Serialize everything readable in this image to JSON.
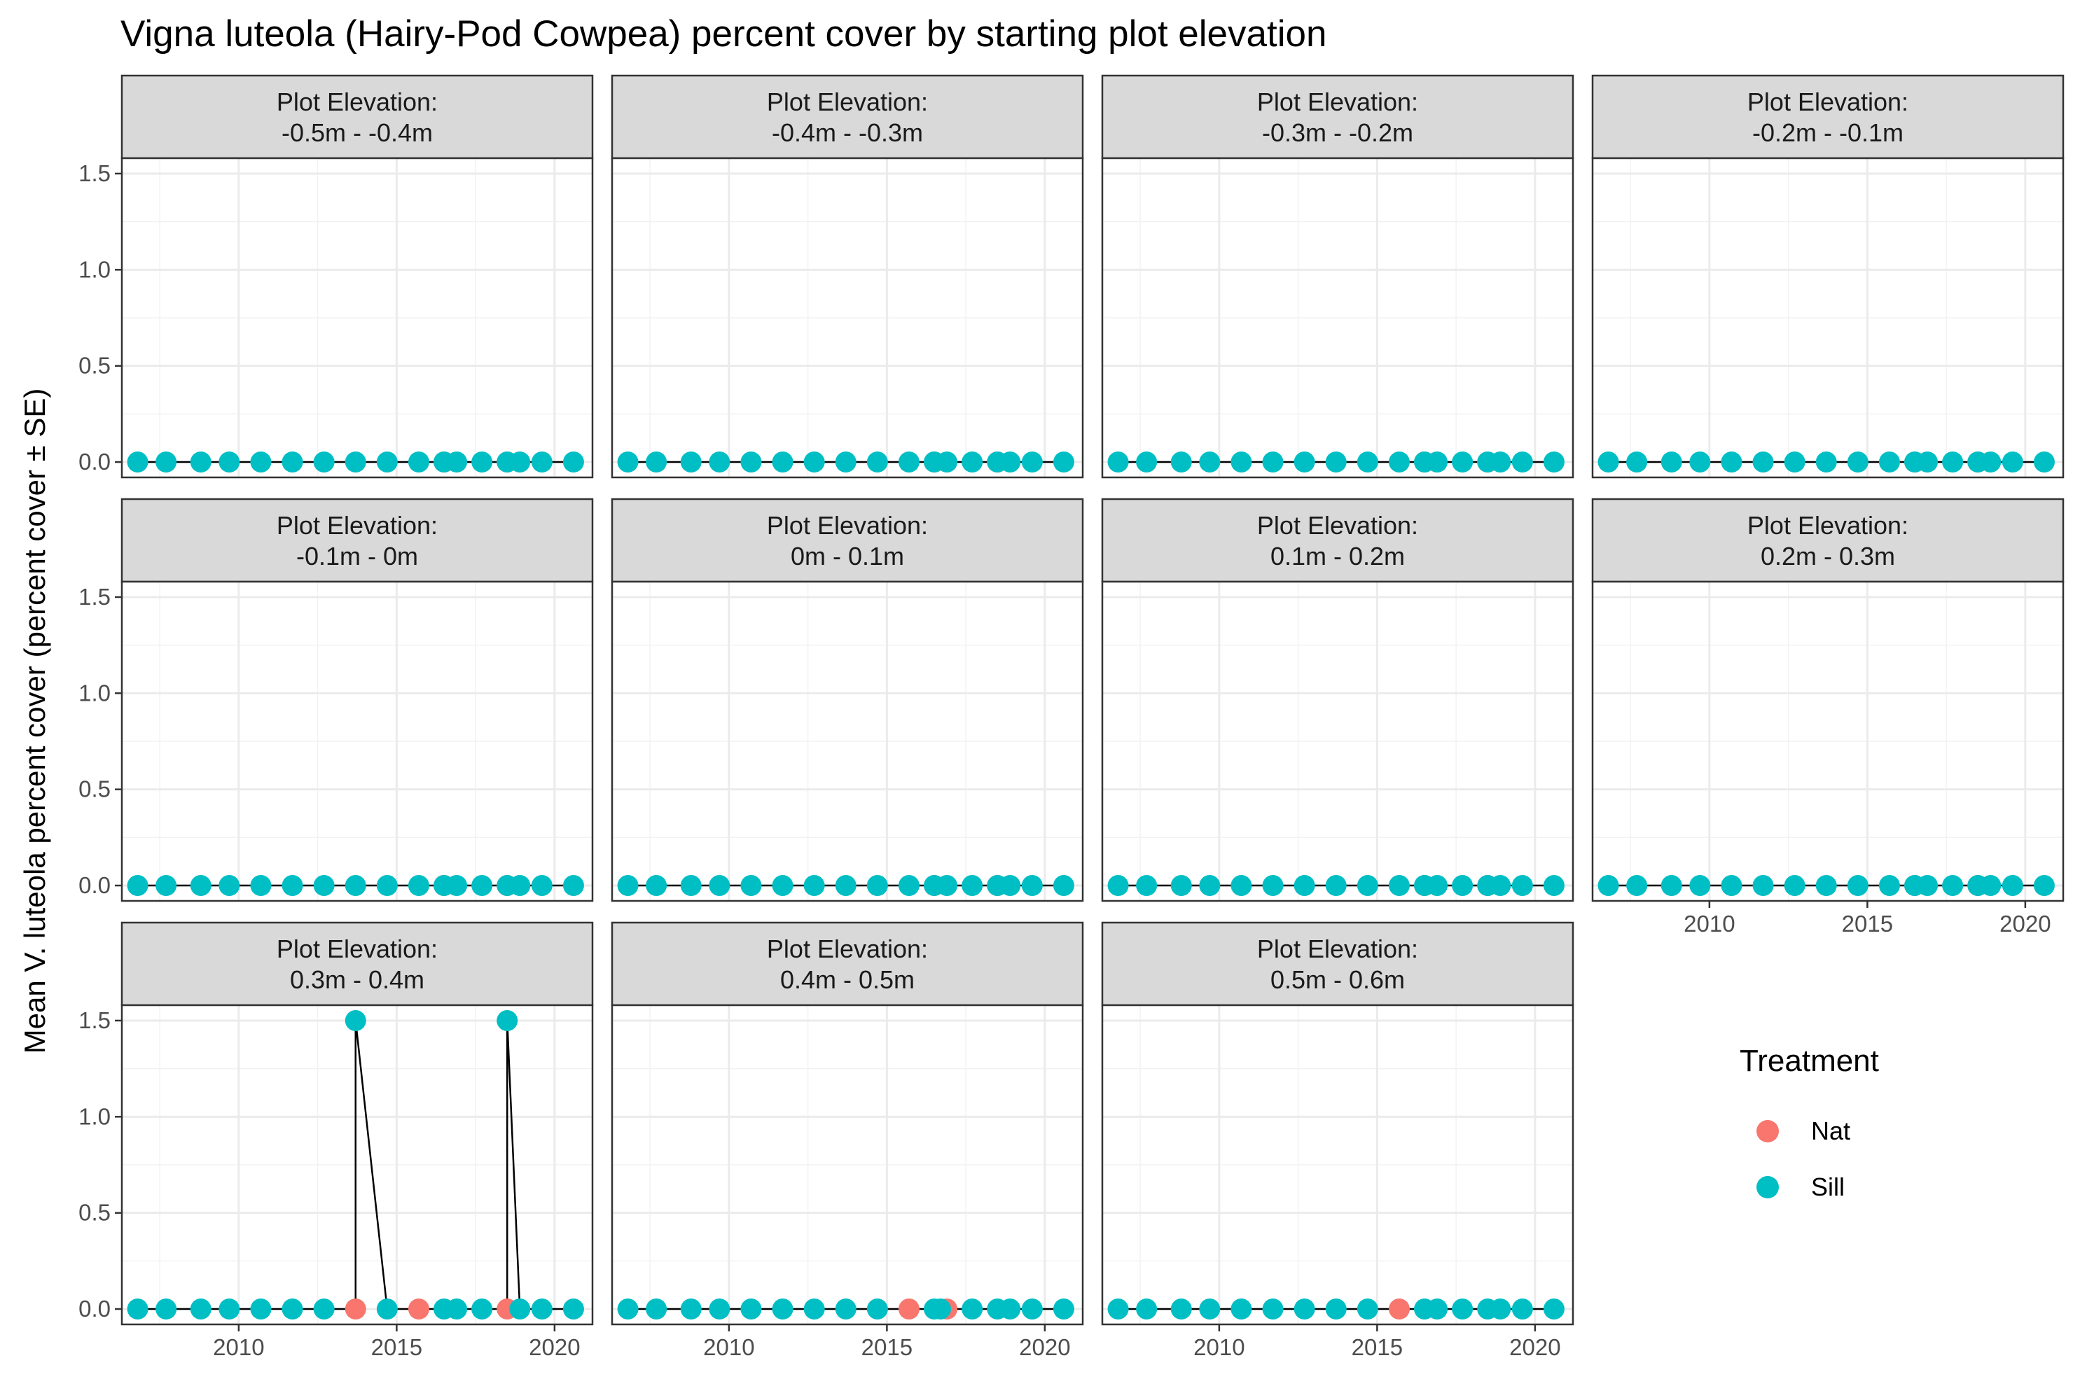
{
  "chart_data": {
    "type": "line",
    "title": "Vigna luteola (Hairy-Pod Cowpea) percent cover by starting plot elevation",
    "xlabel": "",
    "ylabel": "Mean V. luteola percent cover (percent cover ± SE)",
    "strip_prefix": "Plot Elevation:",
    "xlim": [
      2006.3,
      2021.2
    ],
    "ylim": [
      -0.08,
      1.58
    ],
    "x_ticks": [
      2010,
      2015,
      2020
    ],
    "y_ticks": [
      0.0,
      0.5,
      1.0,
      1.5
    ],
    "y_tick_labels": [
      "0.0",
      "0.5",
      "1.0",
      "1.5"
    ],
    "grid": true,
    "legend": {
      "title": "Treatment",
      "placement": "right-bottom",
      "items": [
        {
          "label": "Nat",
          "color": "#F8766D"
        },
        {
          "label": "Sill",
          "color": "#00BFC4"
        }
      ]
    },
    "colors": {
      "Nat": "#F8766D",
      "Sill": "#00BFC4",
      "line": "#000000"
    },
    "panels": [
      {
        "label": "-0.5m - -0.4m",
        "series": [
          {
            "name": "Nat",
            "x": [
              2016.5,
              2018.5
            ],
            "y": [
              0,
              0
            ]
          },
          {
            "name": "Sill",
            "x": [
              2006.8,
              2007.7,
              2008.8,
              2009.7,
              2010.7,
              2011.7,
              2012.7,
              2013.7,
              2014.7,
              2015.7,
              2016.5,
              2016.9,
              2017.7,
              2018.5,
              2018.9,
              2019.6,
              2020.6
            ],
            "y": [
              0,
              0,
              0,
              0,
              0,
              0,
              0,
              0,
              0,
              0,
              0,
              0,
              0,
              0,
              0,
              0,
              0
            ]
          }
        ]
      },
      {
        "label": "-0.4m - -0.3m",
        "series": [
          {
            "name": "Nat",
            "x": [
              2016.5,
              2018.5
            ],
            "y": [
              0,
              0
            ]
          },
          {
            "name": "Sill",
            "x": [
              2006.8,
              2007.7,
              2008.8,
              2009.7,
              2010.7,
              2011.7,
              2012.7,
              2013.7,
              2014.7,
              2015.7,
              2016.5,
              2016.9,
              2017.7,
              2018.5,
              2018.9,
              2019.6,
              2020.6
            ],
            "y": [
              0,
              0,
              0,
              0,
              0,
              0,
              0,
              0,
              0,
              0,
              0,
              0,
              0,
              0,
              0,
              0,
              0
            ]
          }
        ]
      },
      {
        "label": "-0.3m - -0.2m",
        "series": [
          {
            "name": "Nat",
            "x": [
              2016.5,
              2018.5
            ],
            "y": [
              0,
              0
            ]
          },
          {
            "name": "Sill",
            "x": [
              2006.8,
              2007.7,
              2008.8,
              2009.7,
              2010.7,
              2011.7,
              2012.7,
              2013.7,
              2014.7,
              2015.7,
              2016.5,
              2016.9,
              2017.7,
              2018.5,
              2018.9,
              2019.6,
              2020.6
            ],
            "y": [
              0,
              0,
              0,
              0,
              0,
              0,
              0,
              0,
              0,
              0,
              0,
              0,
              0,
              0,
              0,
              0,
              0
            ]
          }
        ]
      },
      {
        "label": "-0.2m - -0.1m",
        "series": [
          {
            "name": "Nat",
            "x": [
              2016.5,
              2018.5
            ],
            "y": [
              0,
              0
            ]
          },
          {
            "name": "Sill",
            "x": [
              2006.8,
              2007.7,
              2008.8,
              2009.7,
              2010.7,
              2011.7,
              2012.7,
              2013.7,
              2014.7,
              2015.7,
              2016.5,
              2016.9,
              2017.7,
              2018.5,
              2018.9,
              2019.6,
              2020.6
            ],
            "y": [
              0,
              0,
              0,
              0,
              0,
              0,
              0,
              0,
              0,
              0,
              0,
              0,
              0,
              0,
              0,
              0,
              0
            ]
          }
        ]
      },
      {
        "label": "-0.1m - 0m",
        "series": [
          {
            "name": "Nat",
            "x": [
              2016.5,
              2018.5
            ],
            "y": [
              0,
              0
            ]
          },
          {
            "name": "Sill",
            "x": [
              2006.8,
              2007.7,
              2008.8,
              2009.7,
              2010.7,
              2011.7,
              2012.7,
              2013.7,
              2014.7,
              2015.7,
              2016.5,
              2016.9,
              2017.7,
              2018.5,
              2018.9,
              2019.6,
              2020.6
            ],
            "y": [
              0,
              0,
              0,
              0,
              0,
              0,
              0,
              0,
              0,
              0,
              0,
              0,
              0,
              0,
              0,
              0,
              0
            ]
          }
        ]
      },
      {
        "label": "0m - 0.1m",
        "series": [
          {
            "name": "Nat",
            "x": [
              2016.5,
              2018.5
            ],
            "y": [
              0,
              0
            ]
          },
          {
            "name": "Sill",
            "x": [
              2006.8,
              2007.7,
              2008.8,
              2009.7,
              2010.7,
              2011.7,
              2012.7,
              2013.7,
              2014.7,
              2015.7,
              2016.5,
              2016.9,
              2017.7,
              2018.5,
              2018.9,
              2019.6,
              2020.6
            ],
            "y": [
              0,
              0,
              0,
              0,
              0,
              0,
              0,
              0,
              0,
              0,
              0,
              0,
              0,
              0,
              0,
              0,
              0
            ]
          }
        ]
      },
      {
        "label": "0.1m - 0.2m",
        "series": [
          {
            "name": "Nat",
            "x": [
              2016.5,
              2018.5
            ],
            "y": [
              0,
              0
            ]
          },
          {
            "name": "Sill",
            "x": [
              2006.8,
              2007.7,
              2008.8,
              2009.7,
              2010.7,
              2011.7,
              2012.7,
              2013.7,
              2014.7,
              2015.7,
              2016.5,
              2016.9,
              2017.7,
              2018.5,
              2018.9,
              2019.6,
              2020.6
            ],
            "y": [
              0,
              0,
              0,
              0,
              0,
              0,
              0,
              0,
              0,
              0,
              0,
              0,
              0,
              0,
              0,
              0,
              0
            ]
          }
        ]
      },
      {
        "label": "0.2m - 0.3m",
        "series": [
          {
            "name": "Nat",
            "x": [
              2016.5,
              2018.5
            ],
            "y": [
              0,
              0
            ]
          },
          {
            "name": "Sill",
            "x": [
              2006.8,
              2007.7,
              2008.8,
              2009.7,
              2010.7,
              2011.7,
              2012.7,
              2013.7,
              2014.7,
              2015.7,
              2016.5,
              2016.9,
              2017.7,
              2018.5,
              2018.9,
              2019.6,
              2020.6
            ],
            "y": [
              0,
              0,
              0,
              0,
              0,
              0,
              0,
              0,
              0,
              0,
              0,
              0,
              0,
              0,
              0,
              0,
              0
            ]
          }
        ]
      },
      {
        "label": "0.3m - 0.4m",
        "series": [
          {
            "name": "Nat",
            "x": [
              2013.7,
              2015.7,
              2018.5
            ],
            "y": [
              0,
              0,
              0
            ]
          },
          {
            "name": "Sill",
            "x": [
              2006.8,
              2007.7,
              2008.8,
              2009.7,
              2010.7,
              2011.7,
              2012.7,
              2013.7,
              2014.7,
              2016.5,
              2016.9,
              2017.7,
              2018.5,
              2018.9,
              2019.6,
              2020.6
            ],
            "y": [
              0,
              0,
              0,
              0,
              0,
              0,
              0,
              1.5,
              0,
              0,
              0,
              0,
              1.5,
              0,
              0,
              0
            ]
          }
        ]
      },
      {
        "label": "0.4m - 0.5m",
        "series": [
          {
            "name": "Nat",
            "x": [
              2015.7,
              2016.9
            ],
            "y": [
              0,
              0
            ]
          },
          {
            "name": "Sill",
            "x": [
              2006.8,
              2007.7,
              2008.8,
              2009.7,
              2010.7,
              2011.7,
              2012.7,
              2013.7,
              2014.7,
              2016.5,
              2016.7,
              2017.7,
              2018.5,
              2018.9,
              2019.6,
              2020.6
            ],
            "y": [
              0,
              0,
              0,
              0,
              0,
              0,
              0,
              0,
              0,
              0,
              0,
              0,
              0,
              0,
              0,
              0
            ]
          }
        ]
      },
      {
        "label": "0.5m - 0.6m",
        "series": [
          {
            "name": "Nat",
            "x": [
              2015.7
            ],
            "y": [
              0
            ]
          },
          {
            "name": "Sill",
            "x": [
              2006.8,
              2007.7,
              2008.8,
              2009.7,
              2010.7,
              2011.7,
              2012.7,
              2013.7,
              2014.7,
              2016.5,
              2016.9,
              2017.7,
              2018.5,
              2018.9,
              2019.6,
              2020.6
            ],
            "y": [
              0,
              0,
              0,
              0,
              0,
              0,
              0,
              0,
              0,
              0,
              0,
              0,
              0,
              0,
              0,
              0
            ]
          }
        ]
      }
    ]
  }
}
